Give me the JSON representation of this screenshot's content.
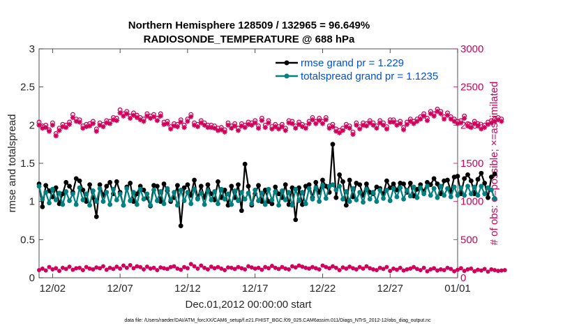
{
  "chart_data": {
    "type": "line",
    "title_line1": "Northern Hemisphere 128509 / 132965 = 96.649%",
    "title_line2": "RADIOSONDE_TEMPERATURE @ 688 hPa",
    "xlabel": "Dec.01,2012 00:00:00 start",
    "ylabel_left": "rmse and totalspread",
    "ylabel_right": "# of obs: o=possible; ×=assimilated",
    "ylim_left": [
      0,
      3
    ],
    "ylim_right": [
      0,
      3000
    ],
    "xlim_days": [
      0,
      31
    ],
    "x_ticks": [
      {
        "day": 1,
        "label": "12/02"
      },
      {
        "day": 6,
        "label": "12/07"
      },
      {
        "day": 11,
        "label": "12/12"
      },
      {
        "day": 16,
        "label": "12/17"
      },
      {
        "day": 21,
        "label": "12/22"
      },
      {
        "day": 26,
        "label": "12/27"
      },
      {
        "day": 31,
        "label": "01/01"
      }
    ],
    "y_ticks_left": [
      "0",
      "0.5",
      "1",
      "1.5",
      "2",
      "2.5",
      "3"
    ],
    "y_ticks_left_values": [
      0,
      0.5,
      1,
      1.5,
      2,
      2.5,
      3
    ],
    "y_ticks_right": [
      "0",
      "500",
      "1000",
      "1500",
      "2000",
      "2500",
      "3000"
    ],
    "y_ticks_right_values": [
      0,
      500,
      1000,
      1500,
      2000,
      2500,
      3000
    ],
    "legend": [
      {
        "label": "rmse grand pr = 1.229",
        "color": "#000000"
      },
      {
        "label": "totalspread grand pr = 1.1235",
        "color": "#00807f"
      }
    ],
    "colors": {
      "rmse": "#000000",
      "spread": "#00807f",
      "obs": "#d1005a"
    },
    "step_days": 0.25,
    "series": [
      {
        "name": "rmse",
        "values": [
          1.23,
          0.93,
          1.21,
          1.14,
          1.06,
          1.18,
          0.97,
          1.1,
          1.25,
          1.2,
          1.12,
          1.3,
          1.27,
          1.15,
          1.0,
          1.22,
          1.05,
          0.8,
          1.22,
          1.08,
          1.2,
          1.25,
          1.1,
          1.26,
          1.12,
          0.95,
          1.19,
          1.24,
          1.0,
          1.1,
          1.2,
          1.15,
          1.05,
          0.94,
          1.21,
          1.2,
          1.0,
          1.23,
          1.14,
          1.0,
          1.05,
          1.21,
          0.68,
          1.18,
          1.22,
          1.08,
          1.28,
          1.04,
          1.2,
          1.05,
          1.22,
          1.1,
          1.02,
          1.26,
          1.05,
          1.15,
          0.95,
          1.2,
          1.05,
          1.22,
          0.88,
          1.49,
          1.2,
          0.95,
          1.1,
          1.21,
          1.0,
          1.15,
          1.0,
          0.97,
          1.19,
          1.1,
          1.05,
          1.22,
          0.96,
          1.18,
          0.76,
          1.18,
          0.96,
          1.2,
          1.22,
          1.05,
          1.25,
          1.12,
          1.28,
          1.2,
          1.12,
          1.75,
          1.05,
          1.35,
          1.26,
          0.95,
          1.28,
          1.06,
          1.24,
          1.22,
          1.08,
          1.23,
          1.12,
          1.1,
          1.19,
          1.17,
          1.1,
          1.27,
          1.18,
          1.23,
          1.15,
          1.24,
          1.23,
          1.12,
          1.24,
          1.07,
          1.16,
          1.22,
          1.13,
          1.25,
          1.22,
          1.3,
          1.23,
          1.1,
          1.27,
          1.28,
          1.13,
          1.32,
          1.33,
          1.1,
          1.3,
          1.35,
          1.27,
          1.1,
          1.29,
          1.37,
          1.24,
          1.05,
          1.32,
          1.36
        ]
      },
      {
        "name": "totalspread",
        "values": [
          1.2,
          1.03,
          1.12,
          0.98,
          1.16,
          1.02,
          1.11,
          0.96,
          1.13,
          1.01,
          1.1,
          0.96,
          1.18,
          1.02,
          1.1,
          0.95,
          1.14,
          1.0,
          1.17,
          1.0,
          1.12,
          0.96,
          1.16,
          1.02,
          1.1,
          0.95,
          1.17,
          1.01,
          1.12,
          0.96,
          1.16,
          1.03,
          1.1,
          0.95,
          1.15,
          1.01,
          1.13,
          0.97,
          1.17,
          1.02,
          1.12,
          0.95,
          1.15,
          1.01,
          1.12,
          0.97,
          1.16,
          1.03,
          1.11,
          0.96,
          1.14,
          1.02,
          1.13,
          0.97,
          1.16,
          1.03,
          1.1,
          0.96,
          1.14,
          1.01,
          1.12,
          1.03,
          1.11,
          0.97,
          1.15,
          1.01,
          1.11,
          0.96,
          1.16,
          1.02,
          1.13,
          0.95,
          1.14,
          1.02,
          1.12,
          0.95,
          1.16,
          1.01,
          1.12,
          0.97,
          1.17,
          1.03,
          1.18,
          1.0,
          1.21,
          1.04,
          1.2,
          1.22,
          1.15,
          1.2,
          1.03,
          1.13,
          1.0,
          1.17,
          1.02,
          1.12,
          0.99,
          1.16,
          1.03,
          1.12,
          1.0,
          1.15,
          1.04,
          1.15,
          1.01,
          1.17,
          1.06,
          1.18,
          1.03,
          1.15,
          1.07,
          1.19,
          1.05,
          1.18,
          1.1,
          1.2,
          1.08,
          1.17,
          1.05,
          1.2,
          1.08,
          1.17,
          1.06,
          1.19,
          1.08,
          1.18,
          1.08,
          1.2,
          1.1,
          1.19,
          1.08,
          1.2,
          1.1,
          1.18,
          1.15,
          1.04
        ]
      },
      {
        "name": "obs_possible",
        "values": [
          2040,
          1990,
          2000,
          1940,
          2030,
          1890,
          1960,
          2010,
          2000,
          2040,
          2140,
          2080,
          2070,
          1990,
          2010,
          2020,
          2050,
          1950,
          2030,
          2010,
          2060,
          2050,
          2100,
          2090,
          2200,
          2150,
          2180,
          2120,
          2160,
          2130,
          2100,
          2080,
          2150,
          2120,
          2140,
          2090,
          2150,
          2040,
          2050,
          1980,
          2020,
          2010,
          2070,
          2000,
          2080,
          2140,
          2030,
          2010,
          2060,
          2030,
          2000,
          2000,
          1990,
          1960,
          1970,
          1940,
          2030,
          1990,
          2020,
          1960,
          2020,
          2000,
          2040,
          2030,
          2060,
          1990,
          2090,
          2000,
          2060,
          1980,
          2010,
          1980,
          2010,
          1960,
          2060,
          2050,
          1990,
          2040,
          2010,
          1990,
          2050,
          2100,
          2050,
          2090,
          2050,
          2100,
          1990,
          2010,
          1950,
          1930,
          1960,
          2010,
          1990,
          1910,
          2030,
          1980,
          2030,
          2020,
          2060,
          2030,
          1990,
          2060,
          2030,
          1980,
          2070,
          2070,
          2030,
          2050,
          1970,
          2040,
          2080,
          2050,
          2080,
          2110,
          2150,
          2090,
          2180,
          2150,
          2210,
          2180,
          2110,
          2160,
          2110,
          2080,
          2050,
          2060,
          2120,
          2020,
          2000,
          2050,
          2020,
          1980,
          2000,
          2040,
          2060,
          2080,
          2100,
          2080
        ]
      },
      {
        "name": "obs_assimilated",
        "values": [
          2000,
          1960,
          1970,
          1920,
          2000,
          1860,
          1930,
          1980,
          1970,
          2010,
          2100,
          2050,
          2040,
          1960,
          1980,
          1990,
          2020,
          1920,
          2000,
          1980,
          2030,
          2020,
          2070,
          2060,
          2160,
          2120,
          2150,
          2090,
          2130,
          2100,
          2070,
          2050,
          2120,
          2090,
          2110,
          2060,
          2120,
          2010,
          2020,
          1950,
          1990,
          1980,
          2040,
          1970,
          2050,
          2110,
          2000,
          1980,
          2030,
          2000,
          1970,
          1970,
          1960,
          1930,
          1940,
          1910,
          2000,
          1960,
          1990,
          1930,
          1990,
          1970,
          2010,
          2000,
          2030,
          1960,
          2060,
          1970,
          2030,
          1950,
          1980,
          1950,
          1980,
          1930,
          2030,
          2020,
          1960,
          2010,
          1980,
          1960,
          2020,
          2070,
          2020,
          2060,
          2020,
          2070,
          1960,
          1980,
          1920,
          1900,
          1930,
          1980,
          1960,
          1880,
          2000,
          1950,
          2000,
          1990,
          2030,
          2000,
          1960,
          2030,
          2000,
          1950,
          2040,
          2040,
          2000,
          2020,
          1940,
          2010,
          2050,
          2020,
          2050,
          2080,
          2120,
          2060,
          2150,
          2120,
          2180,
          2150,
          2080,
          2130,
          2080,
          2050,
          2020,
          2030,
          2090,
          1990,
          1970,
          2020,
          1990,
          1950,
          1970,
          2010,
          2030,
          2050,
          2070,
          2050
        ]
      },
      {
        "name": "obs_low",
        "values": [
          100,
          120,
          95,
          140,
          110,
          125,
          90,
          130,
          115,
          145,
          105,
          125,
          130,
          100,
          140,
          120,
          110,
          135,
          125,
          150,
          105,
          130,
          115,
          145,
          120,
          160,
          130,
          165,
          125,
          150,
          140,
          110,
          145,
          120,
          130,
          100,
          135,
          125,
          115,
          140,
          150,
          120,
          105,
          140,
          125,
          180,
          150,
          120,
          160,
          130,
          110,
          145,
          125,
          140,
          120,
          100,
          135,
          130,
          115,
          140,
          125,
          110,
          150,
          135,
          120,
          130,
          105,
          140,
          125,
          155,
          130,
          115,
          140,
          120,
          110,
          150,
          135,
          160,
          145,
          130,
          120,
          140,
          125,
          110,
          160,
          140,
          125,
          150,
          130,
          100,
          135,
          120,
          145,
          125,
          110,
          140,
          120,
          150,
          125,
          110,
          100,
          130,
          115,
          140,
          90,
          120,
          105,
          130,
          95,
          110,
          120,
          140,
          115,
          100,
          130,
          85,
          110,
          125,
          95,
          110,
          100,
          130,
          115,
          85,
          105,
          125,
          90,
          110,
          120,
          85,
          105,
          95,
          115,
          80,
          110,
          100,
          90,
          95,
          100
        ]
      }
    ]
  },
  "footer": "data file: /Users/raeder/DAI/ATM_forcXX/CAM6_setup/f.e21.FHIST_BGC.f09_025.CAM6assim.011/Diags_NTrS_2012-12/obs_diag_output.nc"
}
